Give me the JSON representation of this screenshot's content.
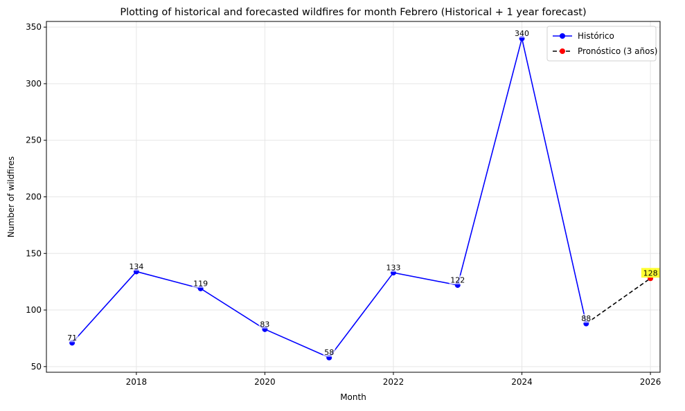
{
  "chart_data": {
    "type": "line",
    "title": "Plotting of historical and forecasted wildfires for month Febrero (Historical + 1 year forecast)",
    "xlabel": "Month",
    "ylabel": "Number of wildfires",
    "xlim": [
      2016.6,
      2026.15
    ],
    "ylim": [
      45,
      355
    ],
    "xticks": [
      2018,
      2020,
      2022,
      2024,
      2026
    ],
    "yticks": [
      50,
      100,
      150,
      200,
      250,
      300,
      350
    ],
    "grid": true,
    "legend_position": "top-right",
    "series": [
      {
        "name": "Histórico",
        "color": "#0000ff",
        "style": "solid",
        "marker": "circle",
        "x": [
          2017,
          2018,
          2019,
          2020,
          2021,
          2022,
          2023,
          2024,
          2025
        ],
        "y": [
          71,
          134,
          119,
          83,
          58,
          133,
          122,
          340,
          88
        ],
        "labels": [
          "71",
          "134",
          "119",
          "83",
          "58",
          "133",
          "122",
          "340",
          "88"
        ]
      },
      {
        "name": "Pronóstico (3 años)",
        "color": "#ff0000",
        "line_color": "#000000",
        "style": "dashed",
        "marker": "circle",
        "x": [
          2025,
          2026
        ],
        "y": [
          88,
          128
        ],
        "labels": [
          "128"
        ],
        "label_highlight": "#ffff33"
      }
    ]
  }
}
